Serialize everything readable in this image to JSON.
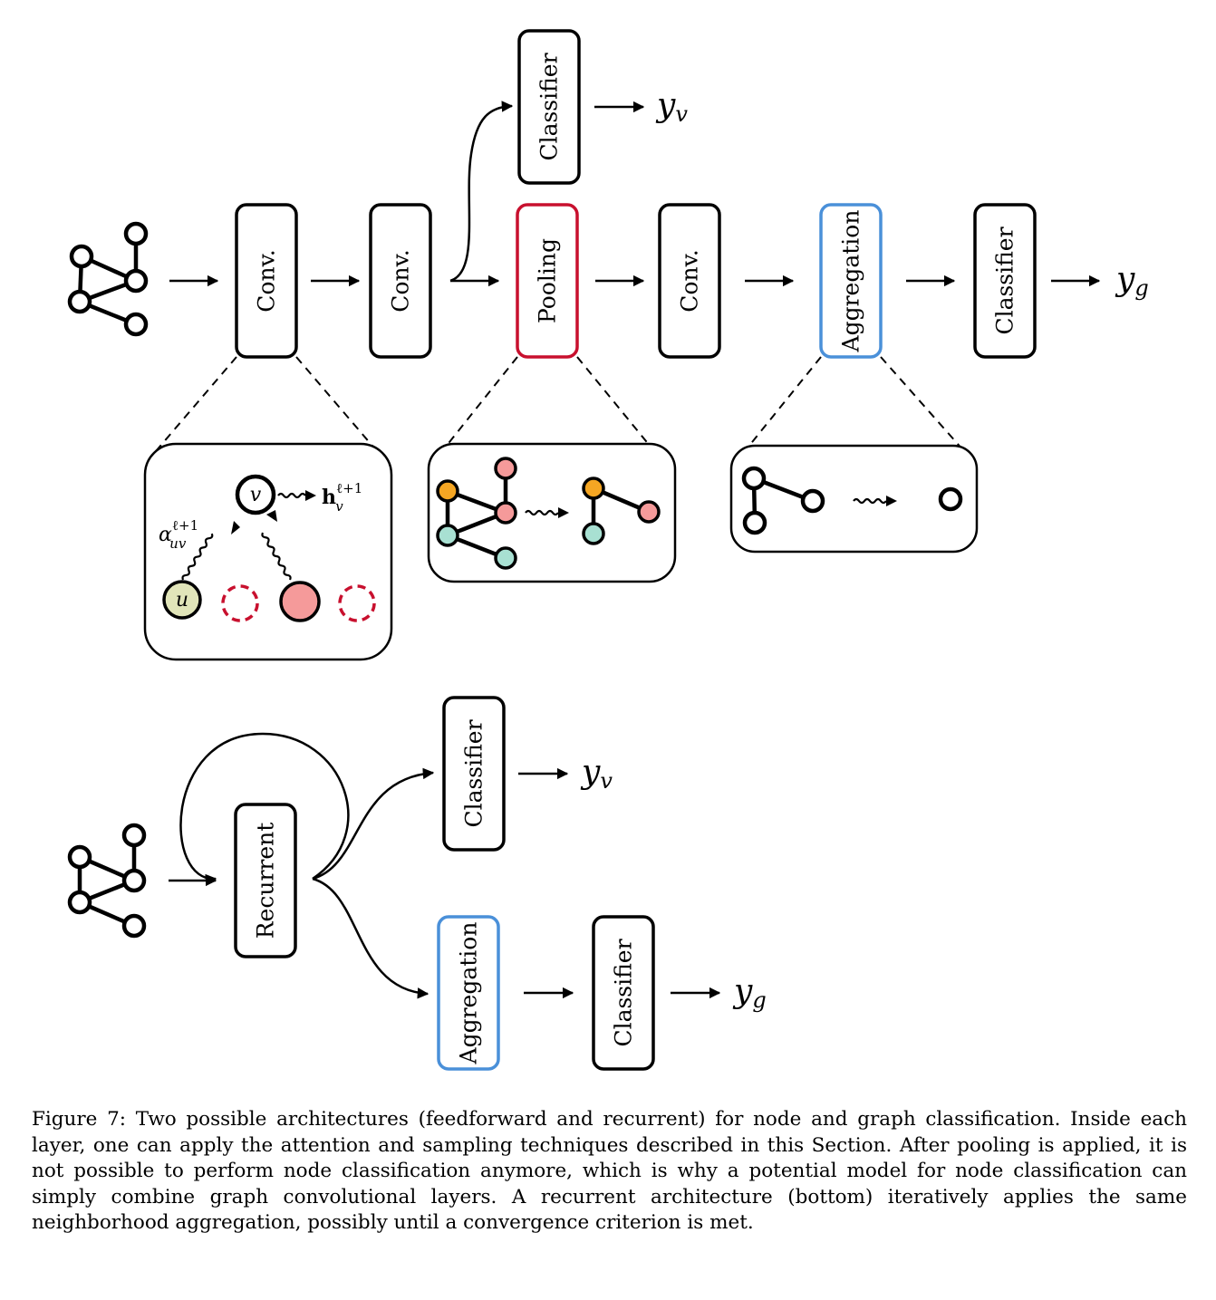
{
  "feedforward": {
    "layers": [
      "Conv.",
      "Conv.",
      "Pooling",
      "Conv.",
      "Aggregation",
      "Classifier"
    ],
    "node_classifier": "Classifier",
    "node_output": "y",
    "node_output_sub": "v",
    "graph_output": "y",
    "graph_output_sub": "g"
  },
  "conv_detail": {
    "target_node": "v",
    "source_node": "u",
    "hidden": "h",
    "hidden_sub": "v",
    "hidden_sup": "ℓ+1",
    "attention": "α",
    "attention_sub": "uv",
    "attention_sup": "ℓ+1"
  },
  "recurrent": {
    "layers": [
      "Recurrent",
      "Classifier",
      "Aggregation",
      "Classifier"
    ],
    "node_output": "y",
    "node_output_sub": "v",
    "graph_output": "y",
    "graph_output_sub": "g"
  },
  "colors": {
    "pooling_border": "#c8102e",
    "aggregation_border": "#4a90d9",
    "source_node_fill": "#e1e5b9",
    "neighbor_fill": "#f59a9a",
    "dropped_neighbor_stroke": "#c8102e",
    "cluster_orange": "#f5a623",
    "cluster_teal": "#a8e0d2",
    "cluster_pink": "#f59a9a"
  },
  "caption": "Figure 7: Two possible architectures (feedforward and recurrent) for node and graph classification. Inside each layer, one can apply the attention and sampling techniques described in this Section. After pooling is applied, it is not possible to perform node classification anymore, which is why a potential model for node classification can simply combine graph convolutional layers. A recurrent architecture (bottom) iteratively applies the same neighborhood aggregation, possibly until a convergence criterion is met."
}
